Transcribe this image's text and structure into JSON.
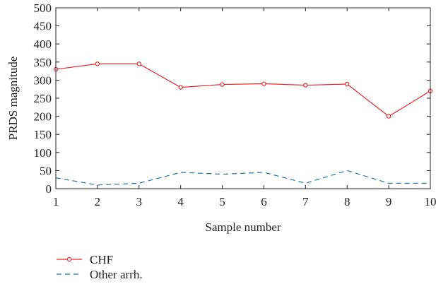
{
  "chart_data": {
    "type": "line",
    "x": [
      1,
      2,
      3,
      4,
      5,
      6,
      7,
      8,
      9,
      10
    ],
    "xlabel": "Sample number",
    "ylabel": "PRDS magnitude",
    "xlim": [
      1,
      10
    ],
    "ylim": [
      0,
      500
    ],
    "xticks": [
      1,
      2,
      3,
      4,
      5,
      6,
      7,
      8,
      9,
      10
    ],
    "yticks": [
      0,
      50,
      100,
      150,
      200,
      250,
      300,
      350,
      400,
      450,
      500
    ],
    "grid": false,
    "legend_position": "bottom-left, below plot",
    "series": [
      {
        "name": "CHF",
        "color": "#e8262d",
        "style": "solid",
        "marker": "circle",
        "values": [
          330,
          345,
          345,
          280,
          288,
          290,
          286,
          289,
          200,
          270
        ]
      },
      {
        "name": "Other arrh.",
        "color": "#2272b4",
        "style": "dashed",
        "marker": "none",
        "values": [
          30,
          10,
          15,
          45,
          40,
          45,
          15,
          50,
          15,
          15
        ]
      }
    ]
  }
}
